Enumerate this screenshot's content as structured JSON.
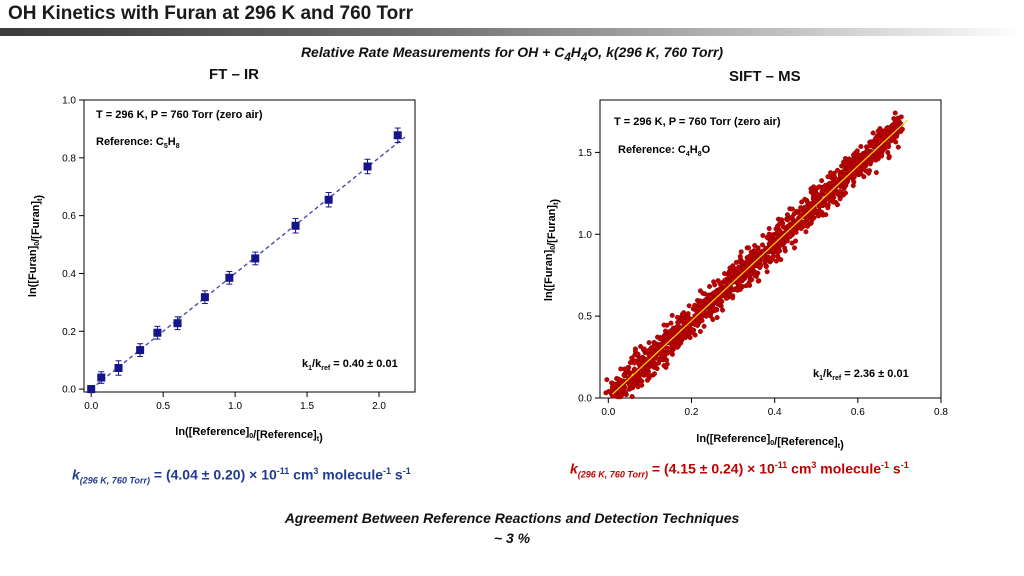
{
  "slide": {
    "title": "OH Kinetics with Furan at 296 K and 760 Torr",
    "subtitle": "Relative Rate Measurements for OH + C4H4O, k(296 K, 760 Torr)",
    "subtitle_parts": {
      "pre": "Relative Rate Measurements for OH + C",
      "s1": "4",
      "mid": "H",
      "s2": "4",
      "post": "O, k(296 K, 760 Torr)"
    },
    "footer_line1": "Agreement Between Reference Reactions and Detection Techniques",
    "footer_line2": "~ 3 %"
  },
  "colors": {
    "ftir_marker": "#14148c",
    "ftir_fit": "#4a4aa8",
    "sift_marker": "#c00000",
    "sift_fit": "#ffd700",
    "rate_left": "#1f3b8f",
    "rate_right": "#c00000"
  },
  "ftir": {
    "label": "FT – IR",
    "annotation_conditions": "T = 296 K, P = 760 Torr (zero air)",
    "annotation_reference_pre": "Reference: C",
    "annotation_reference_s1": "5",
    "annotation_reference_mid": "H",
    "annotation_reference_s2": "8",
    "ratio_label": "= 0.40 ± 0.01",
    "rate": {
      "k": "k",
      "sub": "(296 K, 760 Torr)",
      "eq": " = (4.04 ± 0.20) × 10",
      "exp": "-11",
      "unit1": " cm",
      "unit1_exp": "3",
      "unit2": " molecule",
      "unit2_exp": "-1",
      "unit3": " s",
      "unit3_exp": "-1"
    }
  },
  "sift": {
    "label": "SIFT – MS",
    "annotation_conditions": "T = 296 K, P = 760 Torr (zero air)",
    "annotation_reference_pre": "Reference: C",
    "annotation_reference_s1": "4",
    "annotation_reference_mid": "H",
    "annotation_reference_s2": "8",
    "annotation_reference_post": "O",
    "ratio_label": "= 2.36 ± 0.01",
    "rate": {
      "k": "k",
      "sub": "(296 K, 760 Torr)",
      "eq": " = (4.15 ± 0.24) × 10",
      "exp": "-11",
      "unit1": " cm",
      "unit1_exp": "3",
      "unit2": " molecule",
      "unit2_exp": "-1",
      "unit3": " s",
      "unit3_exp": "-1"
    }
  },
  "chart_data": [
    {
      "type": "scatter",
      "title": "",
      "xlabel": "ln([Reference]0/[Reference]t)",
      "ylabel": "ln([Furan]0/[Furan]t)",
      "xlim": [
        -0.05,
        2.25
      ],
      "ylim": [
        -0.01,
        1.0
      ],
      "xticks": [
        "0.0",
        "0.5",
        "1.0",
        "1.5",
        "2.0"
      ],
      "xtick_values": [
        0,
        0.5,
        1.0,
        1.5,
        2.0
      ],
      "yticks": [
        "0.0",
        "0.2",
        "0.4",
        "0.6",
        "0.8",
        "1.0"
      ],
      "ytick_values": [
        0,
        0.2,
        0.4,
        0.6,
        0.8,
        1.0
      ],
      "slope": 0.4,
      "x": [
        0.0,
        0.07,
        0.19,
        0.34,
        0.46,
        0.6,
        0.79,
        0.96,
        1.14,
        1.42,
        1.65,
        1.92,
        2.13
      ],
      "y": [
        0.0,
        0.04,
        0.073,
        0.135,
        0.195,
        0.228,
        0.318,
        0.385,
        0.452,
        0.565,
        0.655,
        0.77,
        0.878
      ],
      "yerr": [
        0.012,
        0.02,
        0.025,
        0.022,
        0.022,
        0.022,
        0.022,
        0.022,
        0.022,
        0.025,
        0.025,
        0.025,
        0.025
      ],
      "grid": false
    },
    {
      "type": "scatter",
      "title": "",
      "xlabel": "ln([Reference]0/[Reference]t)",
      "ylabel": "ln([Furan]0/[Furan]t)",
      "xlim": [
        -0.02,
        0.8
      ],
      "ylim": [
        0,
        1.82
      ],
      "xticks": [
        "0.0",
        "0.2",
        "0.4",
        "0.6",
        "0.8"
      ],
      "xtick_values": [
        0,
        0.2,
        0.4,
        0.6,
        0.8
      ],
      "yticks": [
        "0.0",
        "0.5",
        "1.0",
        "1.5"
      ],
      "ytick_values": [
        0,
        0.5,
        1.0,
        1.5
      ],
      "slope": 2.36,
      "x_range": [
        0.01,
        0.7
      ],
      "scatter_sd": 0.05,
      "grid": false
    }
  ]
}
